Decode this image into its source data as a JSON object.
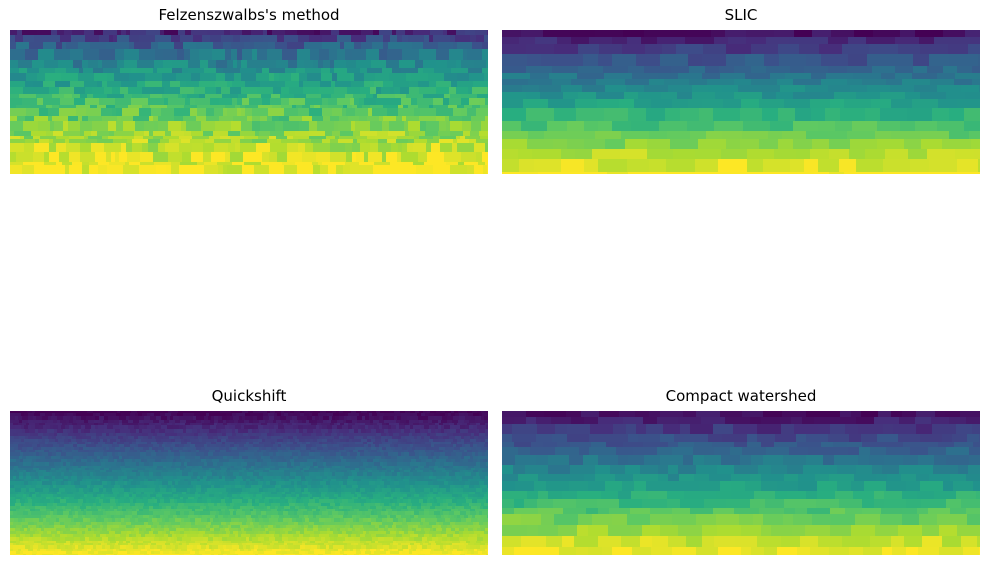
{
  "figure": {
    "panels": [
      {
        "title": "Felzenszwalbs's method",
        "method": "felzenszwalb"
      },
      {
        "title": "SLIC",
        "method": "slic"
      },
      {
        "title": "Quickshift",
        "method": "quickshift"
      },
      {
        "title": "Compact watershed",
        "method": "compact_watershed"
      }
    ],
    "colormap": {
      "name": "viridis",
      "stops": [
        "#440154",
        "#472d7b",
        "#3b528b",
        "#2c728e",
        "#21918c",
        "#28ae80",
        "#5ec962",
        "#addc30",
        "#fde725"
      ]
    },
    "axes_visible": false
  }
}
